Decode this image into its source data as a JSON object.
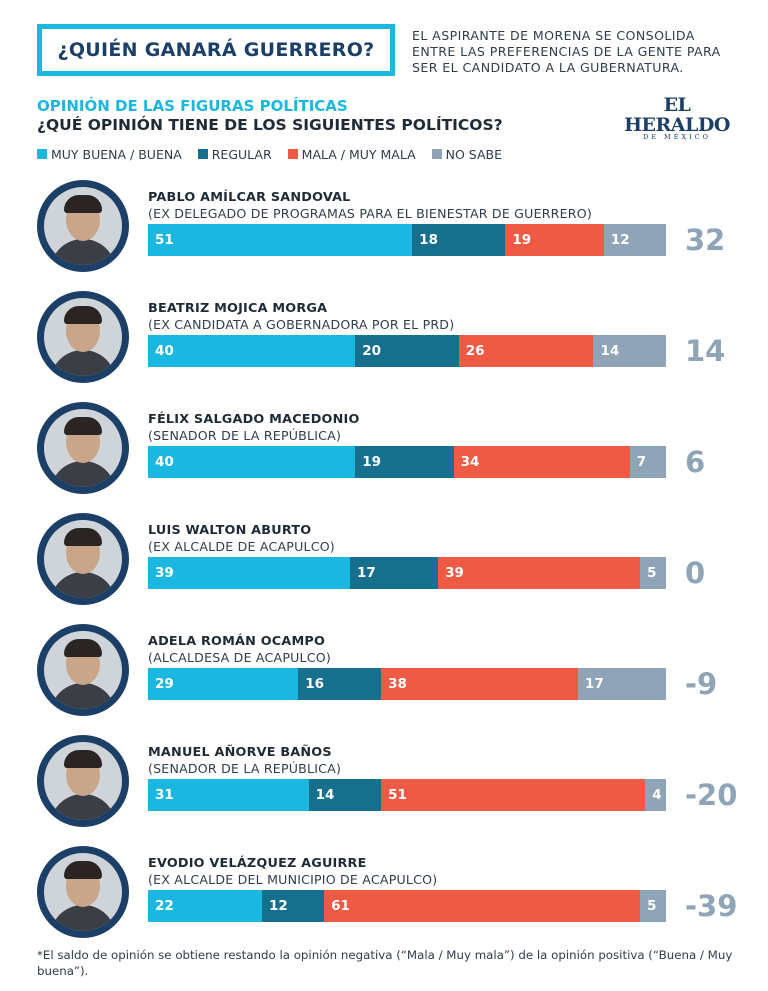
{
  "header": {
    "title": "¿QUIÉN GANARÁ GUERRERO?",
    "intro_lines": [
      "EL ASPIRANTE DE MORENA SE CONSOLIDA",
      "ENTRE LAS PREFERENCIAS DE LA GENTE PARA",
      "SER EL CANDIDATO A LA GUBERNATURA."
    ]
  },
  "logo": {
    "main": "EL HERALDO",
    "sub": "DE MÉXICO"
  },
  "section": {
    "title": "OPINIÓN DE LAS FIGURAS POLÍTICAS",
    "question": "¿QUÉ OPINIÓN TIENE DE LOS SIGUIENTES POLÍTICOS?"
  },
  "colors": {
    "buena": "#1ab8e0",
    "regular": "#176f8e",
    "mala": "#ef5a45",
    "no_sabe": "#8fa4b7"
  },
  "chart_data": {
    "type": "bar",
    "orientation": "horizontal",
    "stacked": true,
    "xlim": [
      0,
      100
    ],
    "legend_position": "top-left",
    "series": [
      {
        "name": "MUY BUENA / BUENA",
        "color": "#1ab8e0"
      },
      {
        "name": "REGULAR",
        "color": "#176f8e"
      },
      {
        "name": "MALA / MUY MALA",
        "color": "#ef5a45"
      },
      {
        "name": "NO SABE",
        "color": "#8fa4b7"
      }
    ],
    "rows": [
      {
        "name": "PABLO AMÍLCAR SANDOVAL",
        "role": "(EX DELEGADO DE PROGRAMAS PARA EL BIENESTAR DE GUERRERO)",
        "values": [
          51,
          18,
          19,
          12
        ],
        "net": "32"
      },
      {
        "name": "BEATRIZ MOJICA MORGA",
        "role": "(EX CANDIDATA A GOBERNADORA POR EL PRD)",
        "values": [
          40,
          20,
          26,
          14
        ],
        "net": "14"
      },
      {
        "name": "FÉLIX SALGADO MACEDONIO",
        "role": "(SENADOR DE LA REPÚBLICA)",
        "values": [
          40,
          19,
          34,
          7
        ],
        "net": "6"
      },
      {
        "name": "LUIS WALTON ABURTO",
        "role": "(EX ALCALDE DE ACAPULCO)",
        "values": [
          39,
          17,
          39,
          5
        ],
        "net": "0"
      },
      {
        "name": "ADELA ROMÁN OCAMPO",
        "role": "(ALCALDESA DE ACAPULCO)",
        "values": [
          29,
          16,
          38,
          17
        ],
        "net": "-9"
      },
      {
        "name": "MANUEL AÑORVE BAÑOS",
        "role": "(SENADOR DE LA REPÚBLICA)",
        "values": [
          31,
          14,
          51,
          4
        ],
        "net": "-20"
      },
      {
        "name": "EVODIO VELÁZQUEZ AGUIRRE",
        "role": "(EX ALCALDE DEL MUNICIPIO DE ACAPULCO)",
        "values": [
          22,
          12,
          61,
          5
        ],
        "net": "-39"
      }
    ]
  },
  "footnote": "*El saldo de opinión se obtiene restando la opinión negativa (“Mala / Muy mala”) de la opinión positiva (“Buena / Muy buena”)."
}
